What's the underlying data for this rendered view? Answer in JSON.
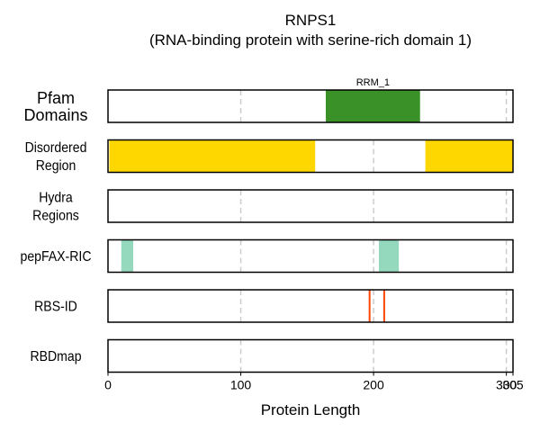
{
  "chart_data": {
    "type": "bar",
    "title": "RNPS1",
    "subtitle": "(RNA-binding protein with serine-rich domain 1)",
    "xlabel": "Protein Length",
    "xlim": [
      0,
      305
    ],
    "protein_length": 305,
    "x_ticks": [
      0,
      100,
      200,
      300,
      305
    ],
    "x_tick_labels": [
      "0",
      "100",
      "200",
      "300",
      "305"
    ],
    "grid_x": [
      100,
      200,
      300
    ],
    "grid": true,
    "rows": [
      {
        "label": "Pfam\nDomains",
        "segments": [
          {
            "start": 164,
            "end": 235,
            "color": "#3a9128",
            "label": "RRM_1"
          }
        ]
      },
      {
        "label": "Disordered\nRegion",
        "segments": [
          {
            "start": 1,
            "end": 156,
            "color": "#ffd700"
          },
          {
            "start": 239,
            "end": 305,
            "color": "#ffd700"
          }
        ]
      },
      {
        "label": "Hydra\nRegions",
        "segments": []
      },
      {
        "label": "pepFAX-RIC",
        "segments": [
          {
            "start": 10,
            "end": 19,
            "color": "#94d9bd"
          },
          {
            "start": 204,
            "end": 219,
            "color": "#94d9bd"
          }
        ]
      },
      {
        "label": "RBS-ID",
        "marks": [
          {
            "position": 197,
            "color": "#ff4500"
          },
          {
            "position": 208,
            "color": "#ff4500"
          }
        ]
      },
      {
        "label": "RBDmap",
        "segments": []
      }
    ]
  }
}
